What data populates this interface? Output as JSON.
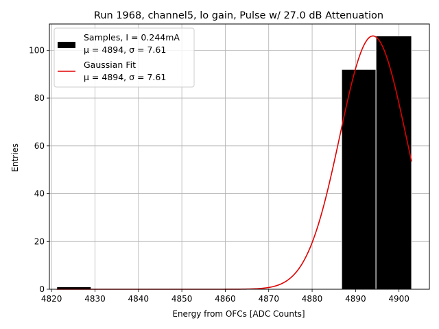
{
  "chart_data": {
    "type": "bar",
    "title": "Run 1968, channel5, lo gain, Pulse w/ 27.0 dB Attenuation",
    "xlabel": "Energy from OFCs [ADC Counts]",
    "ylabel": "Entries",
    "xlim": [
      4819.5,
      4907
    ],
    "ylim": [
      0,
      111
    ],
    "xticks": [
      4820,
      4830,
      4840,
      4850,
      4860,
      4870,
      4880,
      4890,
      4900
    ],
    "yticks": [
      0,
      20,
      40,
      60,
      80,
      100
    ],
    "grid": true,
    "histogram": {
      "name": "Samples, I = 0.244mA",
      "bins": [
        {
          "x0": 4821.2,
          "x1": 4829.1,
          "count": 1
        },
        {
          "x0": 4829.1,
          "x1": 4886.8,
          "count": 0
        },
        {
          "x0": 4886.8,
          "x1": 4894.7,
          "count": 92
        },
        {
          "x0": 4894.7,
          "x1": 4902.9,
          "count": 106
        }
      ],
      "color": "#000000",
      "edgecolor": "#ffffff"
    },
    "fit": {
      "name": "Gaussian Fit",
      "type": "line",
      "mu": 4894,
      "sigma": 7.61,
      "amplitude": 106,
      "x_range": [
        4821.2,
        4902.9
      ],
      "color": "#e00000"
    },
    "legend": {
      "position": "upper-left",
      "entries": [
        {
          "line1": "Samples, I = 0.244mA",
          "line2": "μ = 4894, σ = 7.61",
          "marker": "bar"
        },
        {
          "line1": "Gaussian Fit",
          "line2": "μ = 4894, σ = 7.61",
          "marker": "line"
        }
      ]
    }
  }
}
